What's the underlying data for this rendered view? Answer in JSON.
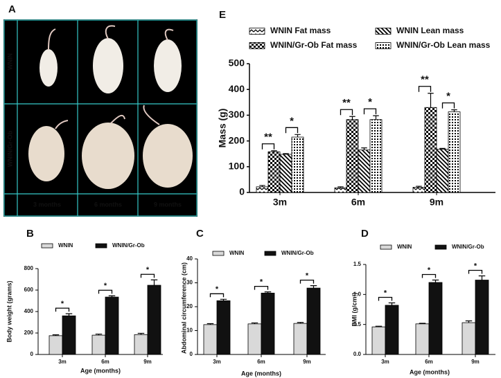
{
  "panel_a": {
    "label": "A",
    "rows": [
      "WNIN",
      "WNIN/Gr-Ob"
    ],
    "columns": [
      "3 months",
      "6 months",
      "9 months"
    ]
  },
  "chart_data": [
    {
      "type": "bar",
      "label": "E",
      "ylabel": "Mass (g)",
      "categories": [
        "3m",
        "6m",
        "9m"
      ],
      "ylim": [
        0,
        500
      ],
      "yticks": [
        0,
        100,
        200,
        300,
        400,
        500
      ],
      "series": [
        {
          "name": "WNIN Fat mass",
          "color": "#000000",
          "pattern": "zigzag",
          "values": [
            22,
            18,
            20
          ],
          "errors": [
            5,
            4,
            4
          ]
        },
        {
          "name": "WNIN/Gr-Ob Fat mass",
          "color": "#000000",
          "pattern": "checker",
          "values": [
            158,
            283,
            330
          ],
          "errors": [
            4,
            12,
            55
          ]
        },
        {
          "name": "WNIN Lean mass",
          "color": "#000000",
          "pattern": "diagonal",
          "values": [
            148,
            165,
            168
          ],
          "errors": [
            3,
            8,
            3
          ]
        },
        {
          "name": "WNIN/Gr-Ob Lean mass",
          "color": "#000000",
          "pattern": "dots",
          "values": [
            215,
            283,
            313
          ],
          "errors": [
            10,
            15,
            8
          ]
        }
      ],
      "annotations": [
        [
          "**",
          "*"
        ],
        [
          "**",
          "*"
        ],
        [
          "**",
          "*"
        ]
      ]
    },
    {
      "type": "bar",
      "label": "B",
      "ylabel": "Body weight (grams)",
      "xlabel": "Age (months)",
      "categories": [
        "3m",
        "6m",
        "9m"
      ],
      "ylim": [
        0,
        800
      ],
      "yticks": [
        0,
        200,
        400,
        600,
        800
      ],
      "series": [
        {
          "name": "WNIN",
          "color": "#d9d9d9",
          "values": [
            175,
            180,
            185
          ],
          "errors": [
            8,
            10,
            12
          ]
        },
        {
          "name": "WNIN/Gr-Ob",
          "color": "#111111",
          "values": [
            360,
            535,
            645
          ],
          "errors": [
            20,
            12,
            50
          ]
        }
      ],
      "annotations": [
        "*",
        "*",
        "*"
      ]
    },
    {
      "type": "bar",
      "label": "C",
      "ylabel": "Abdominal circumference (cm)",
      "xlabel": "Age (months)",
      "categories": [
        "3m",
        "6m",
        "9m"
      ],
      "ylim": [
        0,
        40
      ],
      "yticks": [
        0,
        10,
        20,
        30,
        40
      ],
      "series": [
        {
          "name": "WNIN",
          "color": "#d9d9d9",
          "values": [
            12.5,
            12.8,
            13
          ],
          "errors": [
            0.4,
            0.4,
            0.4
          ]
        },
        {
          "name": "WNIN/Gr-Ob",
          "color": "#111111",
          "values": [
            22.5,
            25.7,
            27.8
          ],
          "errors": [
            0.6,
            0.5,
            1.0
          ]
        }
      ],
      "annotations": [
        "*",
        "*",
        "*"
      ]
    },
    {
      "type": "bar",
      "label": "D",
      "ylabel": "BMI (g/cm²)",
      "xlabel": "Age (months)",
      "categories": [
        "3m",
        "6m",
        "9m"
      ],
      "ylim": [
        0,
        1.5
      ],
      "yticks": [
        {
          "value": 0,
          "label": "0.0"
        },
        {
          "value": 0.5,
          "label": "0.5"
        },
        {
          "value": 1,
          "label": "1.0"
        },
        {
          "value": 1.5,
          "label": "1.5"
        }
      ],
      "series": [
        {
          "name": "WNIN",
          "color": "#d9d9d9",
          "values": [
            0.46,
            0.51,
            0.53
          ],
          "errors": [
            0.01,
            0.01,
            0.03
          ]
        },
        {
          "name": "WNIN/Gr-Ob",
          "color": "#111111",
          "values": [
            0.82,
            1.2,
            1.24
          ],
          "errors": [
            0.04,
            0.04,
            0.07
          ]
        }
      ],
      "annotations": [
        "*",
        "*",
        "*"
      ]
    }
  ]
}
